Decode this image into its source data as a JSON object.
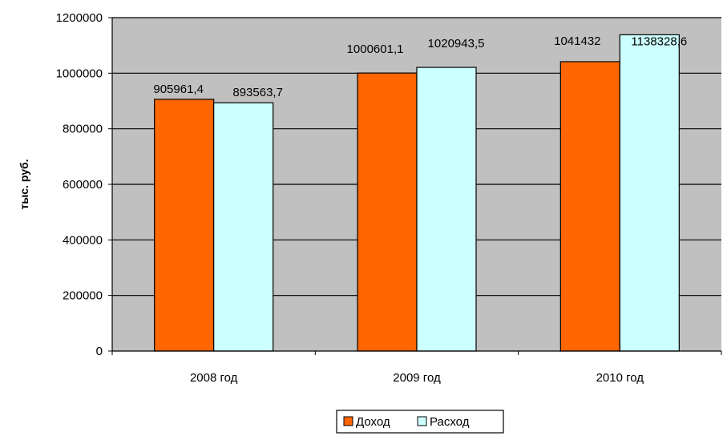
{
  "chart_data": {
    "type": "bar",
    "categories": [
      "2008 год",
      "2009 год",
      "2010 год"
    ],
    "series": [
      {
        "name": "Доход",
        "color": "#ff6600",
        "values": [
          905961.4,
          1000601.1,
          1041432
        ],
        "labels": [
          "905961,4",
          "1000601,1",
          "1041432"
        ]
      },
      {
        "name": "Расход",
        "color": "#ccffff",
        "values": [
          893563.7,
          1020943.5,
          1138328.6
        ],
        "labels": [
          "893563,7",
          "1020943,5",
          "1138328,6"
        ]
      }
    ],
    "ylabel": "тыс. руб.",
    "ylim": [
      0,
      1200000
    ],
    "yticks": [
      0,
      200000,
      400000,
      600000,
      800000,
      1000000,
      1200000
    ],
    "ytick_labels": [
      "0",
      "200000",
      "400000",
      "600000",
      "800000",
      "1000000",
      "1200000"
    ],
    "grid": true,
    "plot_background": "#c0c0c0",
    "legend_position": "bottom"
  }
}
